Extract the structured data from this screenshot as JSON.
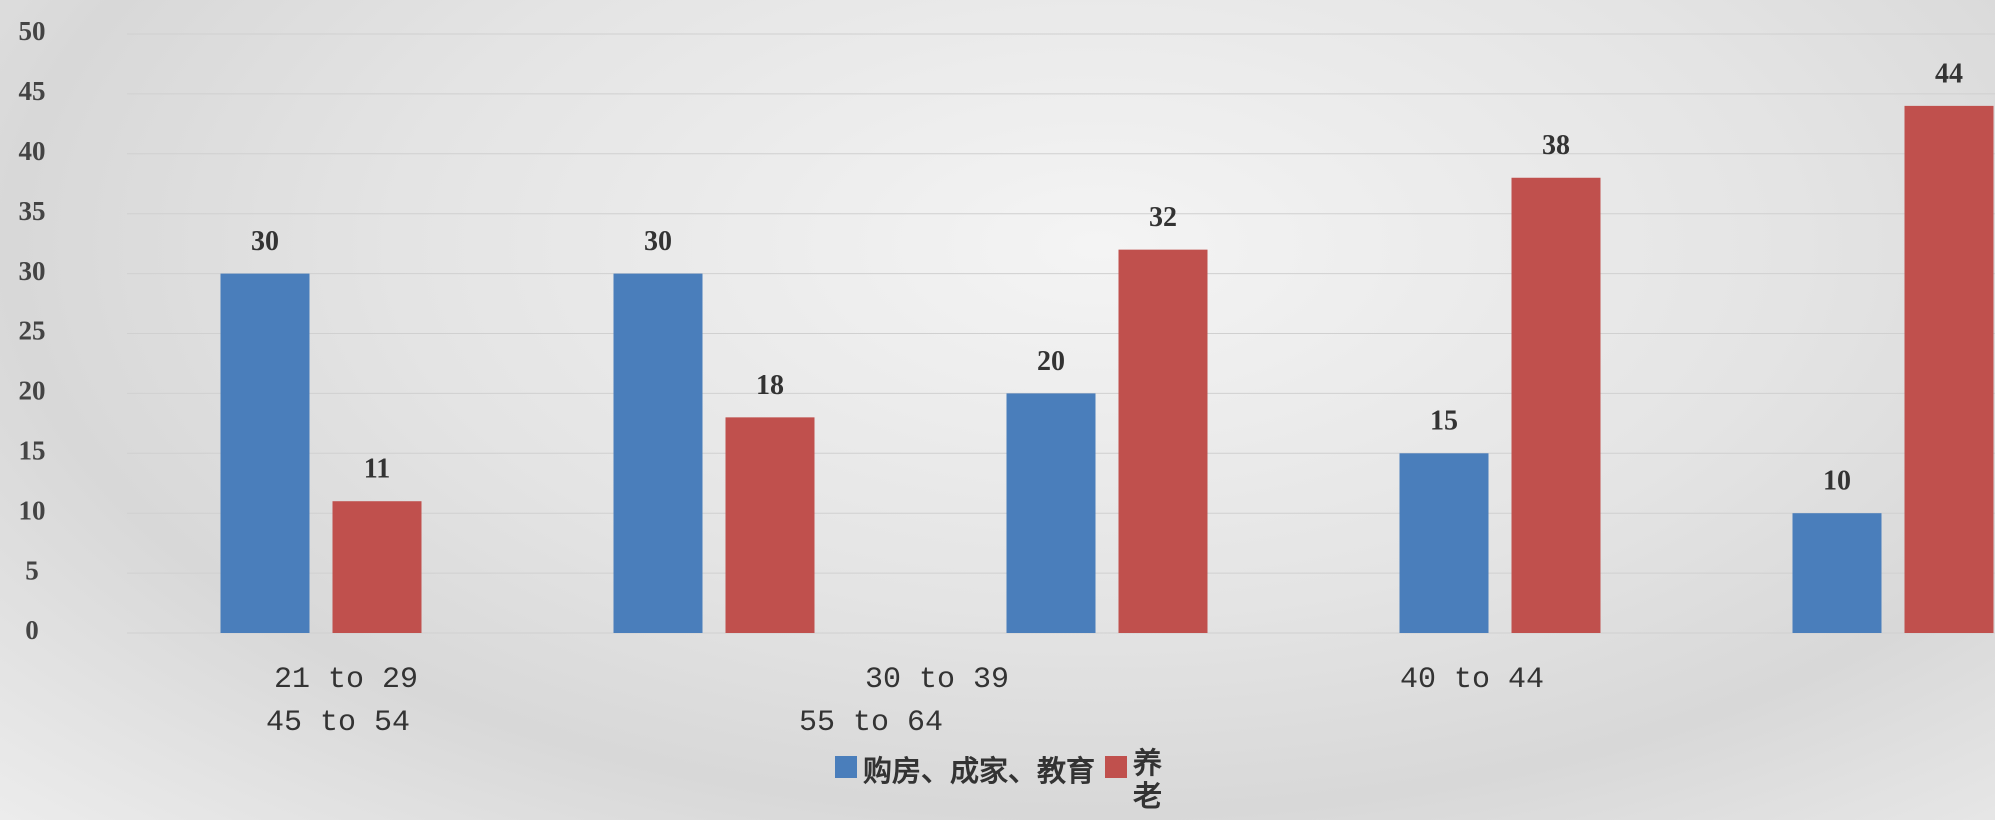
{
  "chart_data": {
    "type": "bar",
    "categories": [
      "21 to 29",
      "30 to 39",
      "40 to 44",
      "45 to 54",
      "55 to 64"
    ],
    "series": [
      {
        "name": "购房、成家、教育",
        "color": "#4a7ebb",
        "values": [
          30,
          30,
          20,
          15,
          10
        ]
      },
      {
        "name": "养老",
        "color": "#c0504d",
        "values": [
          11,
          18,
          32,
          38,
          44
        ]
      }
    ],
    "ylim": [
      0,
      50
    ],
    "yticks": [
      0,
      5,
      10,
      15,
      20,
      25,
      30,
      35,
      40,
      45,
      50
    ],
    "grid": true,
    "legend": "bottom"
  }
}
